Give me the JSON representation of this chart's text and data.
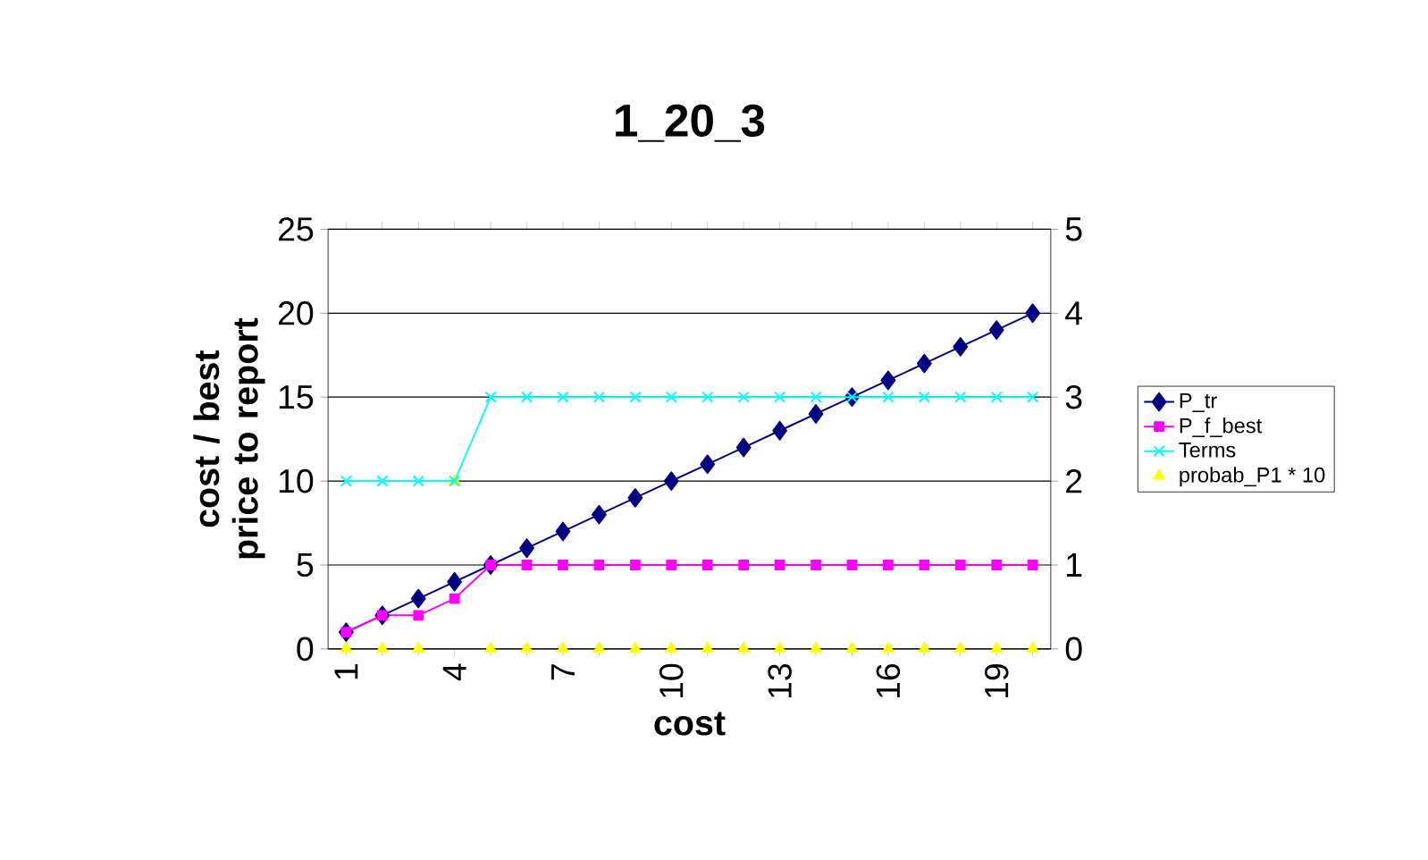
{
  "chart_data": {
    "type": "line",
    "title": "1_20_3",
    "xlabel": "cost",
    "ylabel": "cost / best price to report",
    "categories": [
      "1",
      null,
      null,
      "4",
      null,
      null,
      "7",
      null,
      null,
      "10",
      null,
      null,
      "13",
      null,
      null,
      "16",
      null,
      null,
      "19",
      null
    ],
    "ylim": [
      0,
      25
    ],
    "yticks": [
      0,
      5,
      10,
      15,
      20,
      25
    ],
    "y2lim": [
      0,
      5
    ],
    "y2ticks": [
      0,
      1,
      2,
      3,
      4,
      5
    ],
    "grid": "y",
    "legend": "right",
    "series": [
      {
        "name": "P_tr",
        "color": "#000080",
        "marker": "diamond",
        "values": [
          1,
          2,
          3,
          4,
          5,
          6,
          7,
          8,
          9,
          10,
          11,
          12,
          13,
          14,
          15,
          16,
          17,
          18,
          19,
          20
        ]
      },
      {
        "name": "P_f_best",
        "color": "#ff00ff",
        "marker": "square",
        "values": [
          1,
          2,
          2,
          3,
          5,
          5,
          5,
          5,
          5,
          5,
          5,
          5,
          5,
          5,
          5,
          5,
          5,
          5,
          5,
          5
        ]
      },
      {
        "name": "Terms",
        "color": "#00ffff",
        "marker": "cross",
        "axis": "y2",
        "values": [
          2,
          2,
          2,
          2,
          3,
          3,
          3,
          3,
          3,
          3,
          3,
          3,
          3,
          3,
          3,
          3,
          3,
          3,
          3,
          3
        ]
      },
      {
        "name": "probab_P1 * 10",
        "type": "scatter",
        "color": "#ffff00",
        "marker": "triangle",
        "values": [
          0,
          0,
          0,
          10,
          0,
          0,
          0,
          0,
          0,
          0,
          0,
          0,
          0,
          0,
          0,
          0,
          0,
          0,
          0,
          0
        ]
      }
    ]
  }
}
